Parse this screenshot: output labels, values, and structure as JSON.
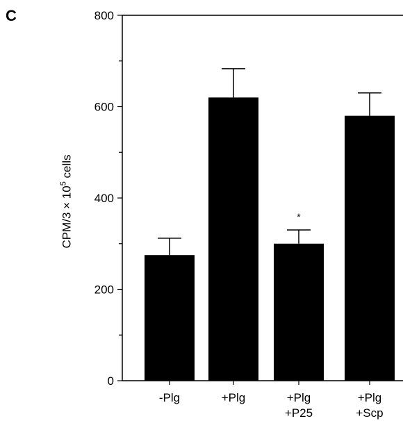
{
  "panel_label": "C",
  "chart_data": {
    "type": "bar",
    "categories": [
      [
        "-Plg"
      ],
      [
        "+Plg"
      ],
      [
        "+Plg",
        "+P25"
      ],
      [
        "+Plg",
        "+Scp"
      ]
    ],
    "values": [
      275,
      620,
      300,
      580
    ],
    "error_upper": [
      312,
      683,
      330,
      630
    ],
    "annotations": [
      "",
      "",
      "*",
      ""
    ],
    "ylabel_prefix": "CPM/3 × 10",
    "ylabel_exp": "5",
    "ylabel_suffix": " cells",
    "ylim": [
      0,
      800
    ],
    "yticks": [
      0,
      200,
      400,
      600,
      800
    ],
    "bar_color": "#000000"
  }
}
